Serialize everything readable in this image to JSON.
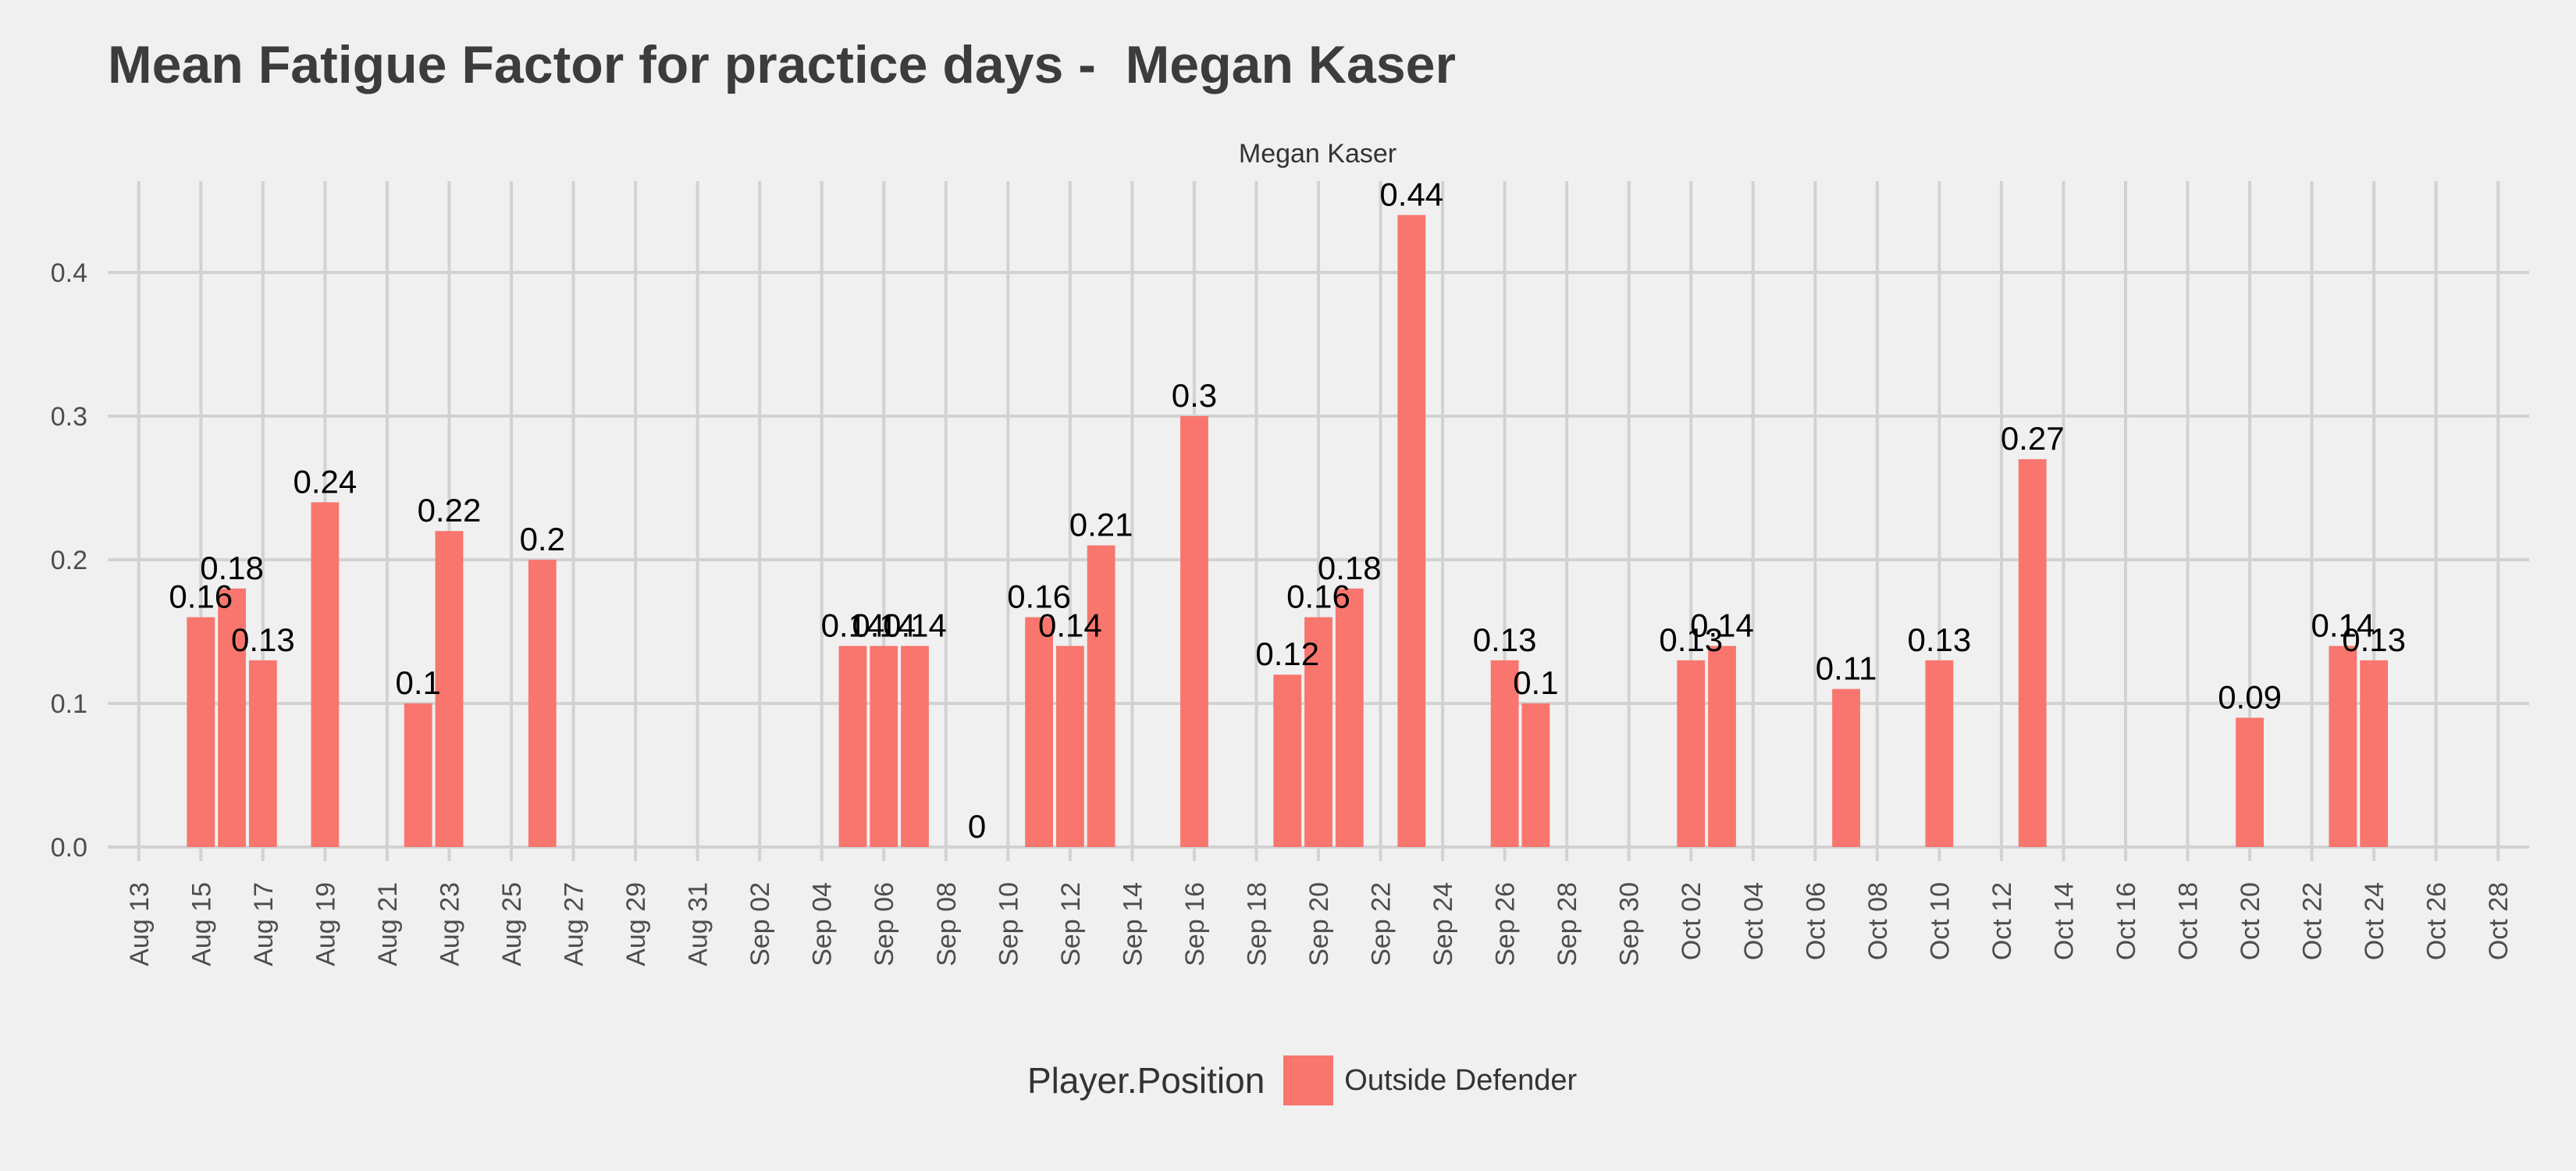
{
  "chart_data": {
    "type": "bar",
    "title": "Mean Fatigue Factor for practice days -  Megan Kaser",
    "facet_label": "Megan Kaser",
    "xlabel": "",
    "ylabel": "",
    "ylim": [
      0,
      0.45
    ],
    "y_ticks": [
      "0.0",
      "0.1",
      "0.2",
      "0.3",
      "0.4"
    ],
    "x_range": [
      "2017-08-12",
      "2017-10-29"
    ],
    "x_ticks": [
      "Aug 13",
      "Aug 15",
      "Aug 17",
      "Aug 19",
      "Aug 21",
      "Aug 23",
      "Aug 25",
      "Aug 27",
      "Aug 29",
      "Aug 31",
      "Sep 02",
      "Sep 04",
      "Sep 06",
      "Sep 08",
      "Sep 10",
      "Sep 12",
      "Sep 14",
      "Sep 16",
      "Sep 18",
      "Sep 20",
      "Sep 22",
      "Sep 24",
      "Sep 26",
      "Sep 28",
      "Sep 30",
      "Oct 02",
      "Oct 04",
      "Oct 06",
      "Oct 08",
      "Oct 10",
      "Oct 12",
      "Oct 14",
      "Oct 16",
      "Oct 18",
      "Oct 20",
      "Oct 22",
      "Oct 24",
      "Oct 26",
      "Oct 28"
    ],
    "x_tick_dates": [
      "2017-08-13",
      "2017-08-15",
      "2017-08-17",
      "2017-08-19",
      "2017-08-21",
      "2017-08-23",
      "2017-08-25",
      "2017-08-27",
      "2017-08-29",
      "2017-08-31",
      "2017-09-02",
      "2017-09-04",
      "2017-09-06",
      "2017-09-08",
      "2017-09-10",
      "2017-09-12",
      "2017-09-14",
      "2017-09-16",
      "2017-09-18",
      "2017-09-20",
      "2017-09-22",
      "2017-09-24",
      "2017-09-26",
      "2017-09-28",
      "2017-09-30",
      "2017-10-02",
      "2017-10-04",
      "2017-10-06",
      "2017-10-08",
      "2017-10-10",
      "2017-10-12",
      "2017-10-14",
      "2017-10-16",
      "2017-10-18",
      "2017-10-20",
      "2017-10-22",
      "2017-10-24",
      "2017-10-26",
      "2017-10-28"
    ],
    "grid": true,
    "legend_position": "bottom",
    "series": [
      {
        "name": "Outside Defender",
        "color": "#f8766d",
        "points": [
          {
            "x": "2017-08-15",
            "y": 0.16,
            "label": "0.16"
          },
          {
            "x": "2017-08-16",
            "y": 0.18,
            "label": "0.18"
          },
          {
            "x": "2017-08-17",
            "y": 0.13,
            "label": "0.13"
          },
          {
            "x": "2017-08-19",
            "y": 0.24,
            "label": "0.24"
          },
          {
            "x": "2017-08-22",
            "y": 0.1,
            "label": "0.1"
          },
          {
            "x": "2017-08-23",
            "y": 0.22,
            "label": "0.22"
          },
          {
            "x": "2017-08-26",
            "y": 0.2,
            "label": "0.2"
          },
          {
            "x": "2017-09-05",
            "y": 0.14,
            "label": "0.14"
          },
          {
            "x": "2017-09-06",
            "y": 0.14,
            "label": "0.14"
          },
          {
            "x": "2017-09-07",
            "y": 0.14,
            "label": "0.14"
          },
          {
            "x": "2017-09-09",
            "y": 0.0,
            "label": "0"
          },
          {
            "x": "2017-09-11",
            "y": 0.16,
            "label": "0.16"
          },
          {
            "x": "2017-09-12",
            "y": 0.14,
            "label": "0.14"
          },
          {
            "x": "2017-09-13",
            "y": 0.21,
            "label": "0.21"
          },
          {
            "x": "2017-09-16",
            "y": 0.3,
            "label": "0.3"
          },
          {
            "x": "2017-09-19",
            "y": 0.12,
            "label": "0.12"
          },
          {
            "x": "2017-09-20",
            "y": 0.16,
            "label": "0.16"
          },
          {
            "x": "2017-09-21",
            "y": 0.18,
            "label": "0.18"
          },
          {
            "x": "2017-09-23",
            "y": 0.44,
            "label": "0.44"
          },
          {
            "x": "2017-09-26",
            "y": 0.13,
            "label": "0.13"
          },
          {
            "x": "2017-09-27",
            "y": 0.1,
            "label": "0.1"
          },
          {
            "x": "2017-10-02",
            "y": 0.13,
            "label": "0.13"
          },
          {
            "x": "2017-10-03",
            "y": 0.14,
            "label": "0.14"
          },
          {
            "x": "2017-10-07",
            "y": 0.11,
            "label": "0.11"
          },
          {
            "x": "2017-10-10",
            "y": 0.13,
            "label": "0.13"
          },
          {
            "x": "2017-10-13",
            "y": 0.27,
            "label": "0.27"
          },
          {
            "x": "2017-10-20",
            "y": 0.09,
            "label": "0.09"
          },
          {
            "x": "2017-10-23",
            "y": 0.14,
            "label": "0.14"
          },
          {
            "x": "2017-10-24",
            "y": 0.13,
            "label": "0.13"
          }
        ]
      }
    ]
  },
  "legend": {
    "title": "Player.Position",
    "label": "Outside Defender"
  }
}
